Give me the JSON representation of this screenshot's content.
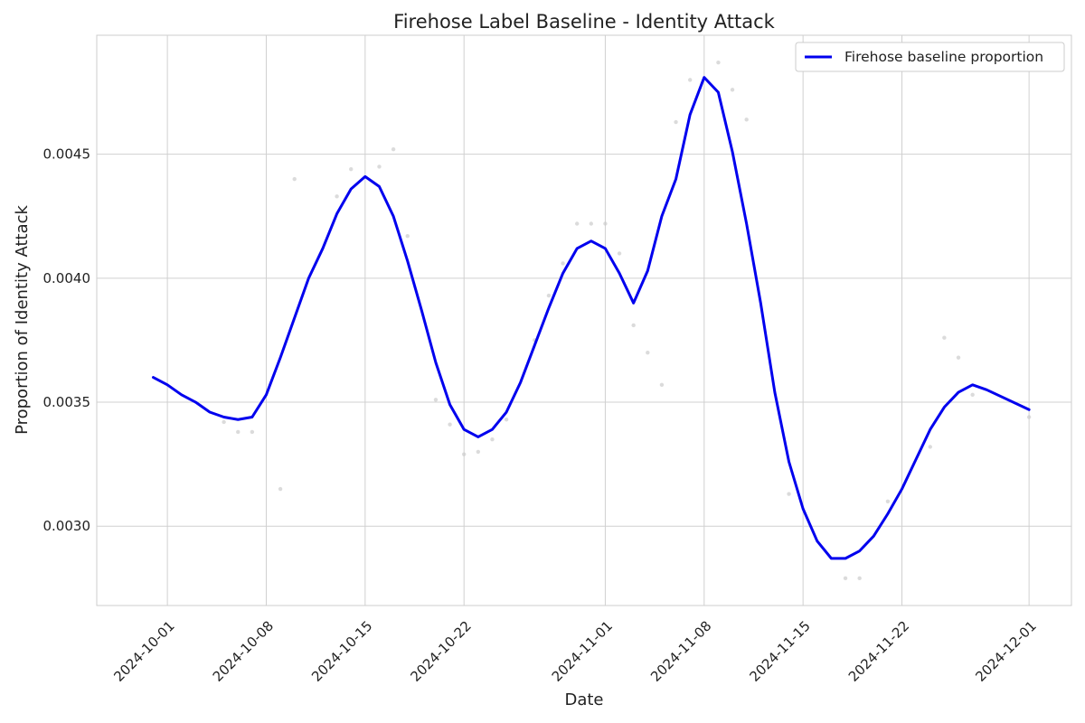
{
  "chart_data": {
    "type": "line",
    "title": "Firehose Label Baseline - Identity Attack",
    "xlabel": "Date",
    "ylabel": "Proportion of Identity Attack",
    "x_range": [
      "2024-09-26",
      "2024-12-04"
    ],
    "ylim": [
      0.00268,
      0.00498
    ],
    "x_ticks": [
      "2024-10-01",
      "2024-10-08",
      "2024-10-15",
      "2024-10-22",
      "2024-11-01",
      "2024-11-08",
      "2024-11-15",
      "2024-11-22",
      "2024-12-01"
    ],
    "y_ticks": [
      0.003,
      0.0035,
      0.004,
      0.0045
    ],
    "y_tick_labels": [
      "0.0030",
      "0.0035",
      "0.0040",
      "0.0045"
    ],
    "grid": true,
    "legend_position": "top-right",
    "colors": {
      "line": "#0000ee",
      "scatter": "#cccccc",
      "grid": "#d0d0d0"
    },
    "series": [
      {
        "name": "Firehose baseline proportion",
        "x": [
          "2024-09-30",
          "2024-10-01",
          "2024-10-02",
          "2024-10-03",
          "2024-10-04",
          "2024-10-05",
          "2024-10-06",
          "2024-10-07",
          "2024-10-08",
          "2024-10-09",
          "2024-10-10",
          "2024-10-11",
          "2024-10-12",
          "2024-10-13",
          "2024-10-14",
          "2024-10-15",
          "2024-10-16",
          "2024-10-17",
          "2024-10-18",
          "2024-10-19",
          "2024-10-20",
          "2024-10-21",
          "2024-10-22",
          "2024-10-23",
          "2024-10-24",
          "2024-10-25",
          "2024-10-26",
          "2024-10-27",
          "2024-10-28",
          "2024-10-29",
          "2024-10-30",
          "2024-10-31",
          "2024-11-01",
          "2024-11-02",
          "2024-11-03",
          "2024-11-04",
          "2024-11-05",
          "2024-11-06",
          "2024-11-07",
          "2024-11-08",
          "2024-11-09",
          "2024-11-10",
          "2024-11-11",
          "2024-11-12",
          "2024-11-13",
          "2024-11-14",
          "2024-11-15",
          "2024-11-16",
          "2024-11-17",
          "2024-11-18",
          "2024-11-19",
          "2024-11-20",
          "2024-11-21",
          "2024-11-22",
          "2024-11-23",
          "2024-11-24",
          "2024-11-25",
          "2024-11-26",
          "2024-11-27",
          "2024-11-28",
          "2024-12-01"
        ],
        "y": [
          0.0036,
          0.00357,
          0.00353,
          0.0035,
          0.00346,
          0.00344,
          0.00343,
          0.00344,
          0.00353,
          0.00368,
          0.00384,
          0.004,
          0.00412,
          0.00426,
          0.00436,
          0.00441,
          0.00437,
          0.00425,
          0.00407,
          0.00387,
          0.00366,
          0.00349,
          0.00339,
          0.00336,
          0.00339,
          0.00346,
          0.00358,
          0.00373,
          0.00388,
          0.00402,
          0.00412,
          0.00415,
          0.00412,
          0.00402,
          0.0039,
          0.00403,
          0.00425,
          0.0044,
          0.00466,
          0.00481,
          0.00475,
          0.00451,
          0.00422,
          0.0039,
          0.00354,
          0.00326,
          0.00307,
          0.00294,
          0.00287,
          0.00287,
          0.0029,
          0.00296,
          0.00305,
          0.00315,
          0.00327,
          0.00339,
          0.00348,
          0.00354,
          0.00357,
          0.00355,
          0.00347
        ]
      }
    ],
    "scatter_points": {
      "x": [
        "2024-10-05",
        "2024-10-06",
        "2024-10-07",
        "2024-10-09",
        "2024-10-10",
        "2024-10-13",
        "2024-10-14",
        "2024-10-16",
        "2024-10-17",
        "2024-10-18",
        "2024-10-20",
        "2024-10-21",
        "2024-10-22",
        "2024-10-23",
        "2024-10-24",
        "2024-10-25",
        "2024-10-27",
        "2024-10-28",
        "2024-10-29",
        "2024-10-30",
        "2024-10-31",
        "2024-11-01",
        "2024-11-02",
        "2024-11-03",
        "2024-11-04",
        "2024-11-05",
        "2024-11-06",
        "2024-11-07",
        "2024-11-09",
        "2024-11-10",
        "2024-11-11",
        "2024-11-14",
        "2024-11-18",
        "2024-11-19",
        "2024-11-21",
        "2024-11-24",
        "2024-11-25",
        "2024-11-26",
        "2024-11-27",
        "2024-12-01"
      ],
      "y": [
        0.00342,
        0.00338,
        0.00338,
        0.00315,
        0.0044,
        0.00433,
        0.00444,
        0.00445,
        0.00452,
        0.00417,
        0.00351,
        0.00341,
        0.00329,
        0.0033,
        0.00335,
        0.00343,
        0.00375,
        0.00393,
        0.00406,
        0.00422,
        0.00422,
        0.00422,
        0.0041,
        0.00381,
        0.0037,
        0.00357,
        0.00463,
        0.0048,
        0.00487,
        0.00476,
        0.00464,
        0.00313,
        0.00279,
        0.00279,
        0.0031,
        0.00332,
        0.00376,
        0.00368,
        0.00353,
        0.00344
      ]
    }
  }
}
